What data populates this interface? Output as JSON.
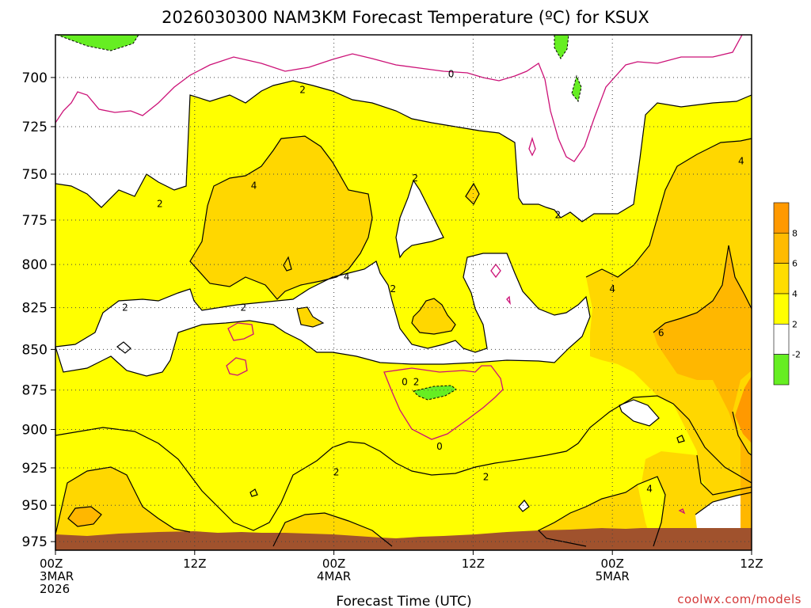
{
  "chart_data": {
    "type": "heatmap",
    "title": "2026030300 NAM3KM Forecast Temperature (ºC) for KSUX",
    "xlabel": "Forecast Time (UTC)",
    "ylabel": "",
    "credit": "coolwx.com/models",
    "x_ticks": [
      {
        "hours": 0,
        "lines": [
          "00Z",
          "3MAR",
          "2026"
        ]
      },
      {
        "hours": 12,
        "lines": [
          "12Z"
        ]
      },
      {
        "hours": 24,
        "lines": [
          "00Z",
          "4MAR"
        ]
      },
      {
        "hours": 36,
        "lines": [
          "12Z"
        ]
      },
      {
        "hours": 48,
        "lines": [
          "00Z",
          "5MAR"
        ]
      },
      {
        "hours": 60,
        "lines": [
          "12Z"
        ]
      }
    ],
    "xlim": [
      0,
      60
    ],
    "y_ticks": [
      700,
      725,
      750,
      775,
      800,
      825,
      850,
      875,
      900,
      925,
      950,
      975
    ],
    "ylim": [
      981,
      679
    ],
    "y_scale": "log-pressure (inverted)",
    "grid": "dotted",
    "colorbar": {
      "placement": "right",
      "colors": [
        "#66ee22",
        "#ffffff",
        "#ffff00",
        "#ffdd00",
        "#ffbb00",
        "#ff9900"
      ],
      "tick_labels": [
        "-2",
        "2",
        "4",
        "6",
        "8"
      ]
    },
    "ground_color": "#a0522d",
    "contour_levels_labeled": [
      0,
      2,
      4,
      6
    ],
    "contour_label_positions": [
      {
        "label": "2",
        "hours": 21.3,
        "hpa": 707
      },
      {
        "label": "0",
        "hours": 34.1,
        "hpa": 699
      },
      {
        "label": "2",
        "hours": 9.0,
        "hpa": 767
      },
      {
        "label": "4",
        "hours": 17.1,
        "hpa": 757
      },
      {
        "label": "2",
        "hours": 31.0,
        "hpa": 753
      },
      {
        "label": "2",
        "hours": 43.3,
        "hpa": 773
      },
      {
        "label": "4",
        "hours": 59.1,
        "hpa": 744
      },
      {
        "label": "4",
        "hours": 25.1,
        "hpa": 808
      },
      {
        "label": "2",
        "hours": 29.1,
        "hpa": 815
      },
      {
        "label": "4",
        "hours": 48.0,
        "hpa": 815
      },
      {
        "label": "2",
        "hours": 6.0,
        "hpa": 826
      },
      {
        "label": "2",
        "hours": 16.2,
        "hpa": 826
      },
      {
        "label": "6",
        "hours": 52.2,
        "hpa": 841
      },
      {
        "label": "0",
        "hours": 30.1,
        "hpa": 871
      },
      {
        "label": "2",
        "hours": 31.1,
        "hpa": 871
      },
      {
        "label": "0",
        "hours": 33.1,
        "hpa": 912
      },
      {
        "label": "2",
        "hours": 24.2,
        "hpa": 929
      },
      {
        "label": "2",
        "hours": 37.1,
        "hpa": 932
      },
      {
        "label": "4",
        "hours": 51.2,
        "hpa": 940
      }
    ]
  }
}
